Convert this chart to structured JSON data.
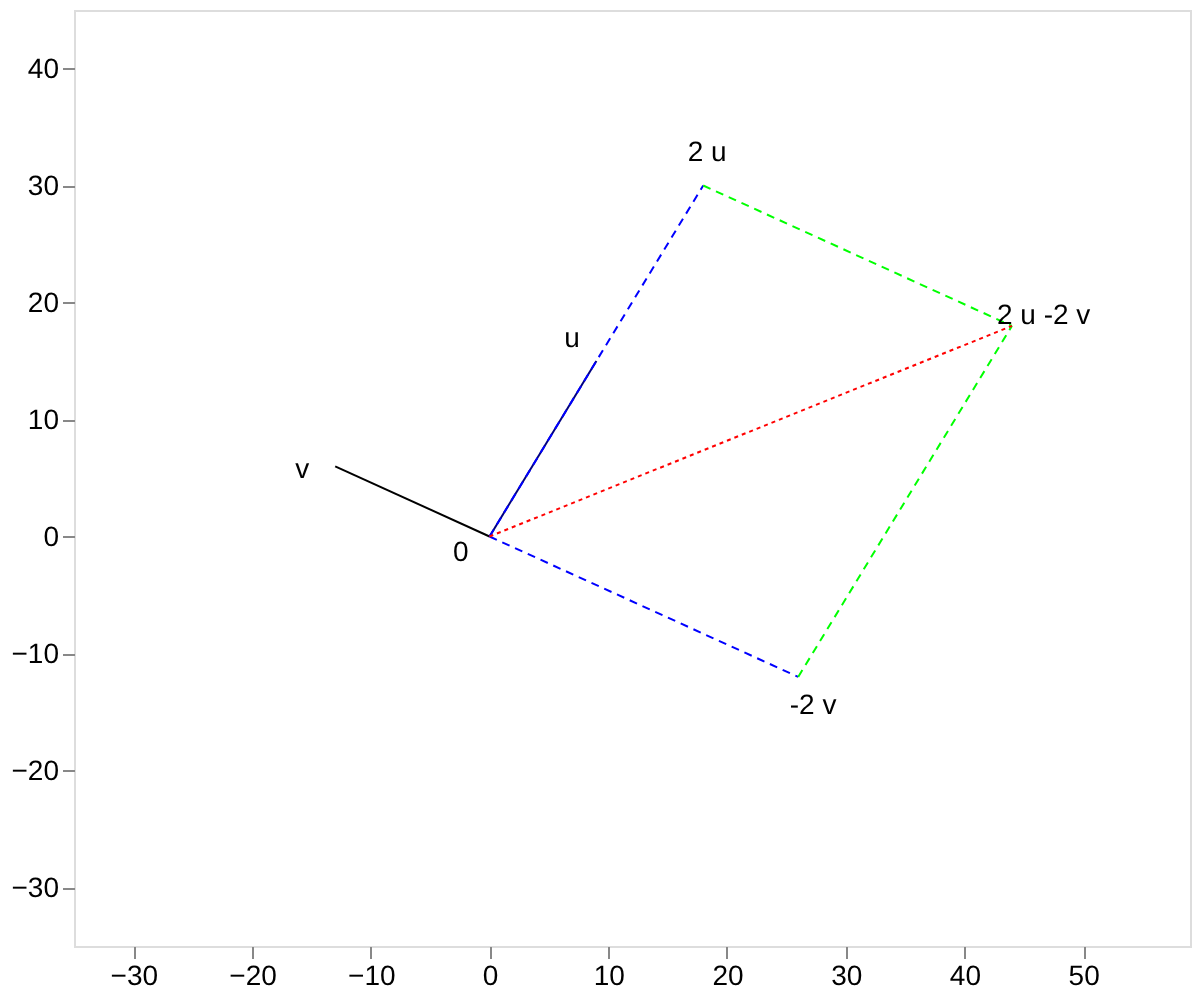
{
  "chart_data": {
    "type": "line",
    "xlim": [
      -35,
      59
    ],
    "ylim": [
      -35,
      45
    ],
    "xticks": [
      -30,
      -20,
      -10,
      0,
      10,
      20,
      30,
      40,
      50
    ],
    "yticks": [
      -30,
      -20,
      -10,
      0,
      10,
      20,
      30,
      40
    ],
    "grid": false,
    "series": [
      {
        "color": "#000080",
        "line_style": "solid",
        "x": [
          0,
          9
        ],
        "values": [
          0,
          15
        ]
      },
      {
        "color": "#000000",
        "line_style": "solid",
        "x": [
          0,
          -13
        ],
        "values": [
          0,
          6
        ]
      },
      {
        "color": "#0000ff",
        "line_style": "dashed",
        "x": [
          0,
          18
        ],
        "values": [
          0,
          30
        ]
      },
      {
        "color": "#0000ff",
        "line_style": "dashed",
        "x": [
          0,
          26
        ],
        "values": [
          0,
          -12
        ]
      },
      {
        "color": "#00ff00",
        "line_style": "dashed",
        "x": [
          18,
          44
        ],
        "values": [
          30,
          18
        ]
      },
      {
        "color": "#00ff00",
        "line_style": "dashed",
        "x": [
          26,
          44
        ],
        "values": [
          -12,
          18
        ]
      },
      {
        "color": "#ff0000",
        "line_style": "dotted",
        "x": [
          0,
          44
        ],
        "values": [
          0,
          18
        ]
      }
    ],
    "annotations": [
      {
        "text": "0",
        "x": 0,
        "y": 0
      },
      {
        "text": "u",
        "x": 9,
        "y": 15
      },
      {
        "text": "v",
        "x": -13,
        "y": 6
      },
      {
        "text": "2 u",
        "x": 18,
        "y": 30
      },
      {
        "text": "-2 v",
        "x": 26,
        "y": -12
      },
      {
        "text": "2 u -2 v",
        "x": 44,
        "y": 18
      }
    ]
  }
}
